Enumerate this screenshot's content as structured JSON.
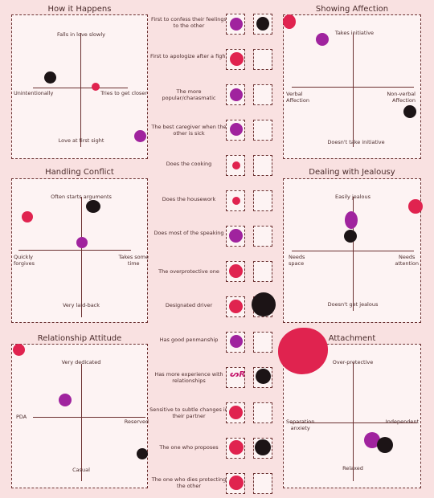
{
  "colors": {
    "red": "#e0234f",
    "purple": "#a0239e",
    "black": "#1c1416",
    "border": "#6b3030",
    "background": "#f9e1e1",
    "panel": "#fdf3f3"
  },
  "panels": [
    {
      "title": "How it Happens",
      "top": "Falls in love slowly",
      "bottom": "Love at first sight",
      "left": "Unintentionally",
      "right": "Tries to get closer"
    },
    {
      "title": "Showing Affection",
      "top": "Takes initiative",
      "bottom": "Doesn't take initiative",
      "left": "Verbal\nAffection",
      "right": "Non-verbal\nAffection"
    },
    {
      "title": "Handling Conflict",
      "top": "Often starts arguments",
      "bottom": "Very laid-back",
      "left": "Quickly\nforgives",
      "right": "Takes some\ntime"
    },
    {
      "title": "Dealing with Jealousy",
      "top": "Easily jealous",
      "bottom": "Doesn't get jealous",
      "left": "Needs\nspace",
      "right": "Needs\nattention"
    },
    {
      "title": "Relationship Attitude",
      "top": "Very dedicated",
      "bottom": "Casual",
      "left": "PDA",
      "right": "Reserved"
    },
    {
      "title": "Attachment",
      "top": "Over-protective",
      "bottom": "Relaxed",
      "left": "Separation\nanxiety",
      "right": "Independent"
    }
  ],
  "questions": [
    "First to confess their feelings to the other",
    "First to apologize after a fight",
    "The more popular/charasmatic",
    "The best caregiver when the other is sick",
    "Does the cooking",
    "Does the housework",
    "Does most of the speaking",
    "The overprotective one",
    "Designated driver",
    "Has good penmanship",
    "Has more experience with relationships",
    "Sensitive to subtle changes in their partner",
    "The one who proposes",
    "The one who dies protecting the other"
  ],
  "signature_text": "ᔕR"
}
